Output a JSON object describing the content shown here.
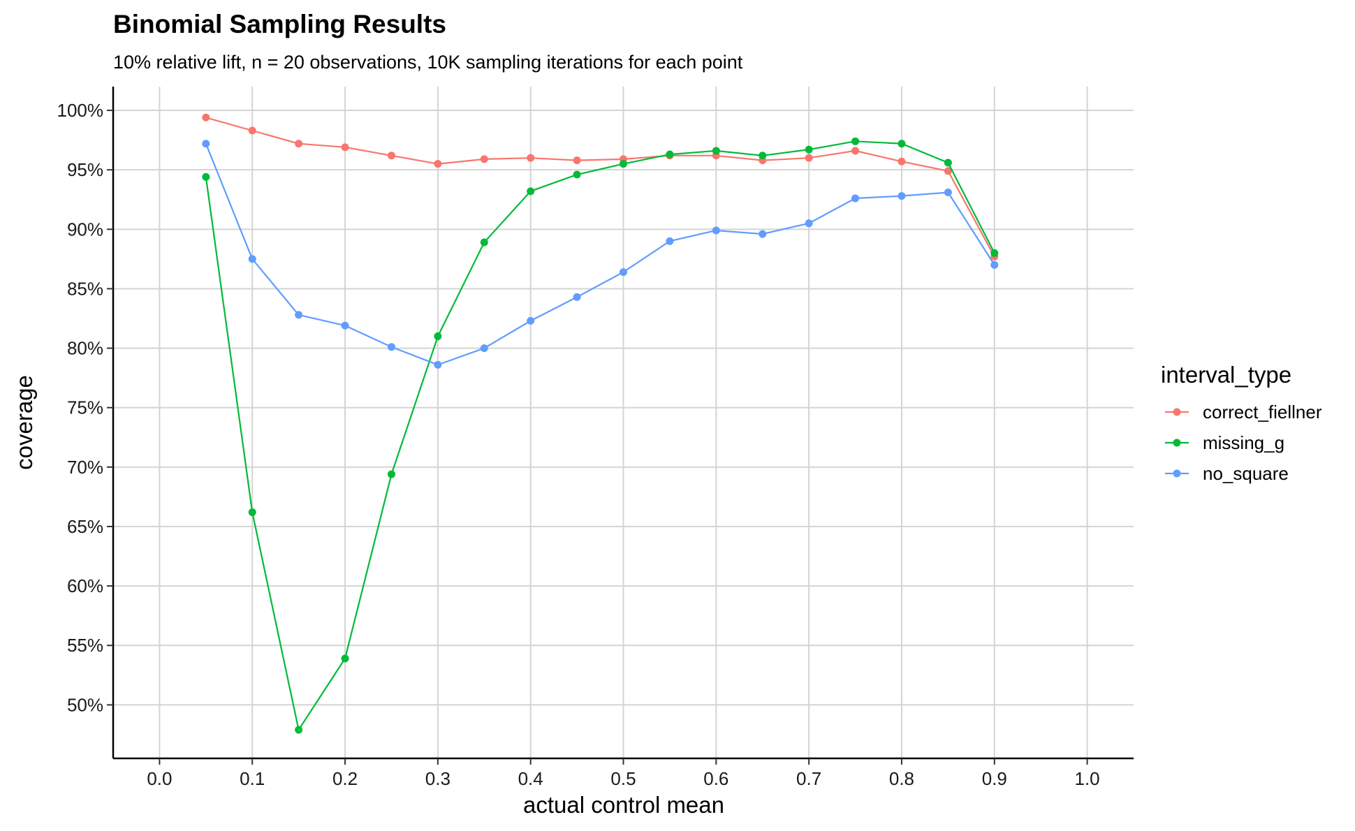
{
  "chart_data": {
    "type": "line",
    "title": "Binomial Sampling Results",
    "subtitle": "10% relative lift, n = 20 observations, 10K sampling iterations for each point",
    "xlabel": "actual control mean",
    "ylabel": "coverage",
    "xlim": [
      -0.05,
      1.05
    ],
    "ylim": [
      0.455,
      1.02
    ],
    "x_ticks": [
      0.0,
      0.1,
      0.2,
      0.3,
      0.4,
      0.5,
      0.6,
      0.7,
      0.8,
      0.9,
      1.0
    ],
    "x_tick_labels": [
      "0.0",
      "0.1",
      "0.2",
      "0.3",
      "0.4",
      "0.5",
      "0.6",
      "0.7",
      "0.8",
      "0.9",
      "1.0"
    ],
    "y_ticks": [
      0.5,
      0.55,
      0.6,
      0.65,
      0.7,
      0.75,
      0.8,
      0.85,
      0.9,
      0.95,
      1.0
    ],
    "y_tick_labels": [
      "50%",
      "55%",
      "60%",
      "65%",
      "70%",
      "75%",
      "80%",
      "85%",
      "90%",
      "95%",
      "100%"
    ],
    "grid": true,
    "legend": {
      "title": "interval_type",
      "position": "right"
    },
    "x": [
      0.05,
      0.1,
      0.15,
      0.2,
      0.25,
      0.3,
      0.35,
      0.4,
      0.45,
      0.5,
      0.55,
      0.6,
      0.65,
      0.7,
      0.75,
      0.8,
      0.85,
      0.9
    ],
    "series": [
      {
        "name": "correct_fiellner",
        "color": "#F8766D",
        "values": [
          0.994,
          0.983,
          0.972,
          0.969,
          0.962,
          0.955,
          0.959,
          0.96,
          0.958,
          0.959,
          0.962,
          0.962,
          0.958,
          0.96,
          0.966,
          0.957,
          0.949,
          0.877
        ]
      },
      {
        "name": "missing_g",
        "color": "#00BA38",
        "values": [
          0.944,
          0.662,
          0.479,
          0.539,
          0.694,
          0.81,
          0.889,
          0.932,
          0.946,
          0.955,
          0.963,
          0.966,
          0.962,
          0.967,
          0.974,
          0.972,
          0.956,
          0.88
        ]
      },
      {
        "name": "no_square",
        "color": "#619CFF",
        "values": [
          0.972,
          0.875,
          0.828,
          0.819,
          0.801,
          0.786,
          0.8,
          0.823,
          0.843,
          0.864,
          0.89,
          0.899,
          0.896,
          0.905,
          0.926,
          0.928,
          0.931,
          0.87
        ]
      }
    ]
  }
}
